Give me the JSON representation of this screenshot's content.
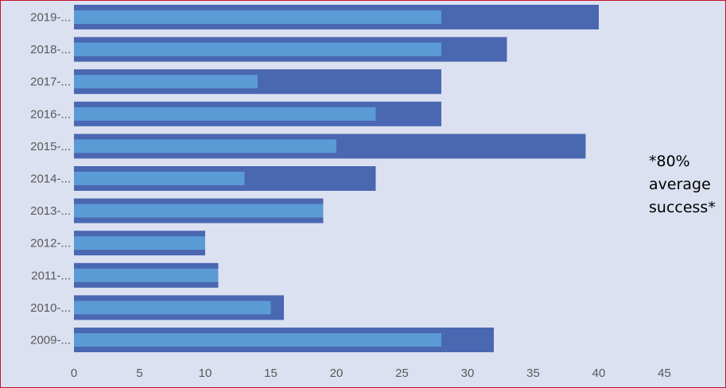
{
  "chart_data": {
    "type": "bar",
    "orientation": "horizontal",
    "categories": [
      "2019-...",
      "2018-...",
      "2017-...",
      "2016-...",
      "2015-...",
      "2014-...",
      "2013-...",
      "2012-...",
      "2011-...",
      "2010-...",
      "2009-..."
    ],
    "series": [
      {
        "values": [
          40,
          33,
          28,
          28,
          39,
          23,
          19,
          10,
          11,
          16,
          32
        ],
        "color": "#4a67b1"
      },
      {
        "values": [
          28,
          28,
          14,
          23,
          20,
          13,
          19,
          10,
          11,
          15,
          28
        ],
        "color": "#5b9bd5"
      }
    ],
    "xlim": [
      0,
      45
    ],
    "x_ticks": [
      0,
      5,
      10,
      15,
      20,
      25,
      30,
      35,
      40,
      45
    ],
    "grid": false,
    "legend": "none",
    "title": "",
    "xlabel": "",
    "ylabel": ""
  },
  "annotation": "*80% average success*",
  "colors": {
    "background": "#dce1f1",
    "border": "#c8102e",
    "tick_text": "#595959"
  }
}
